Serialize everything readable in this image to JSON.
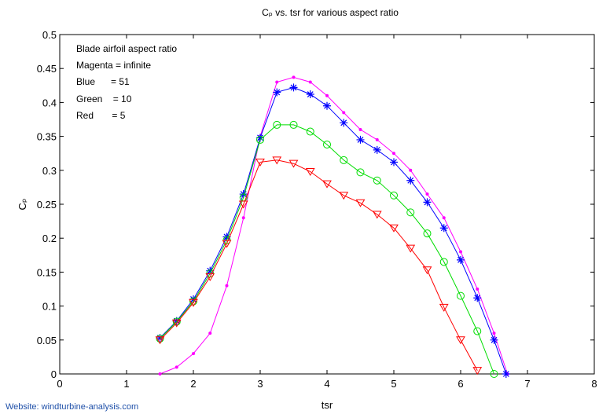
{
  "chart_data": {
    "type": "line",
    "title": "Cₚ vs. tsr for various aspect ratio",
    "xlabel": "tsr",
    "ylabel": "Cₚ",
    "xlim": [
      0,
      8
    ],
    "ylim": [
      0,
      0.5
    ],
    "xticks": [
      "0",
      "1",
      "2",
      "3",
      "4",
      "5",
      "6",
      "7",
      "8"
    ],
    "yticks": [
      "0",
      "0.05",
      "0.1",
      "0.15",
      "0.2",
      "0.25",
      "0.3",
      "0.35",
      "0.4",
      "0.45",
      "0.5"
    ],
    "grid": false,
    "annotations": [
      "Blade airfoil aspect ratio",
      "Magenta = infinite",
      "Blue      = 51",
      "Green    = 10",
      "Red       = 5"
    ],
    "series": [
      {
        "color": "#ff00ff",
        "marker": "dot",
        "x": [
          1.5,
          1.75,
          2.0,
          2.25,
          2.5,
          2.75,
          3.0,
          3.25,
          3.5,
          3.75,
          4.0,
          4.25,
          4.5,
          4.75,
          5.0,
          5.25,
          5.5,
          5.75,
          6.0,
          6.25,
          6.5,
          6.7
        ],
        "y": [
          0.0,
          0.01,
          0.03,
          0.06,
          0.13,
          0.23,
          0.35,
          0.43,
          0.437,
          0.43,
          0.41,
          0.385,
          0.36,
          0.345,
          0.325,
          0.3,
          0.265,
          0.23,
          0.18,
          0.125,
          0.06,
          0.0
        ]
      },
      {
        "color": "#0000ff",
        "marker": "star",
        "x": [
          1.5,
          1.75,
          2.0,
          2.25,
          2.5,
          2.75,
          3.0,
          3.25,
          3.5,
          3.75,
          4.0,
          4.25,
          4.5,
          4.75,
          5.0,
          5.25,
          5.5,
          5.75,
          6.0,
          6.25,
          6.5,
          6.68
        ],
        "y": [
          0.053,
          0.078,
          0.11,
          0.152,
          0.202,
          0.265,
          0.348,
          0.415,
          0.422,
          0.412,
          0.395,
          0.37,
          0.345,
          0.33,
          0.312,
          0.285,
          0.253,
          0.215,
          0.168,
          0.112,
          0.05,
          0.0
        ]
      },
      {
        "color": "#00dd00",
        "marker": "circle",
        "x": [
          1.5,
          1.75,
          2.0,
          2.25,
          2.5,
          2.75,
          3.0,
          3.25,
          3.5,
          3.75,
          4.0,
          4.25,
          4.5,
          4.75,
          5.0,
          5.25,
          5.5,
          5.75,
          6.0,
          6.25,
          6.5
        ],
        "y": [
          0.052,
          0.077,
          0.107,
          0.148,
          0.197,
          0.26,
          0.345,
          0.367,
          0.367,
          0.357,
          0.338,
          0.315,
          0.297,
          0.285,
          0.263,
          0.238,
          0.207,
          0.165,
          0.115,
          0.063,
          0.0
        ]
      },
      {
        "color": "#ff0000",
        "marker": "triangle",
        "x": [
          1.5,
          1.75,
          2.0,
          2.25,
          2.5,
          2.75,
          3.0,
          3.25,
          3.5,
          3.75,
          4.0,
          4.25,
          4.5,
          4.75,
          5.0,
          5.25,
          5.5,
          5.75,
          6.0,
          6.25
        ],
        "y": [
          0.05,
          0.075,
          0.105,
          0.143,
          0.192,
          0.25,
          0.312,
          0.315,
          0.31,
          0.298,
          0.28,
          0.263,
          0.252,
          0.235,
          0.215,
          0.185,
          0.153,
          0.098,
          0.05,
          0.005
        ]
      }
    ]
  },
  "footer": {
    "website": "Website: windturbine-analysis.com"
  }
}
